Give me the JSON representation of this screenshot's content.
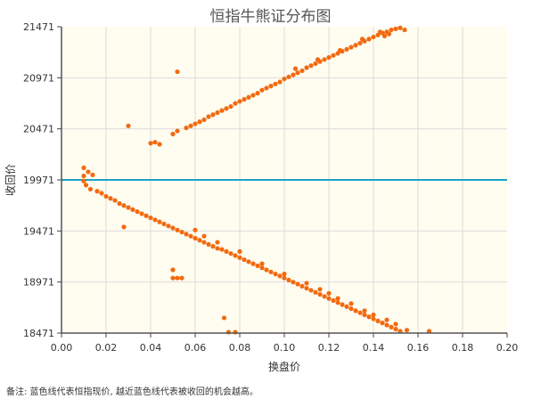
{
  "note": "备注:  蓝色线代表恒指现价, 越近蓝色线代表被收回的机会越高。",
  "chart_data": {
    "type": "scatter",
    "title": "恒指牛熊证分布图",
    "xlabel": "换盘价",
    "ylabel": "收回价",
    "xlim": [
      0,
      0.2
    ],
    "ylim": [
      18471,
      21471
    ],
    "x_ticks": [
      "0.00",
      "0.02",
      "0.04",
      "0.06",
      "0.08",
      "0.10",
      "0.12",
      "0.14",
      "0.16",
      "0.18",
      "0.20"
    ],
    "y_ticks": [
      "18471",
      "18971",
      "19471",
      "19971",
      "20471",
      "20971",
      "21471"
    ],
    "grid": true,
    "reference_line": {
      "y": 19971,
      "color": "#1aa3c8"
    },
    "colors": {
      "points": "#f26a10",
      "background": "#fffcf0",
      "grid": "#dcdcdc"
    },
    "bull_points": [
      [
        0.01,
        19960
      ],
      [
        0.011,
        19920
      ],
      [
        0.013,
        19880
      ],
      [
        0.016,
        19860
      ],
      [
        0.018,
        19840
      ],
      [
        0.02,
        19810
      ],
      [
        0.022,
        19790
      ],
      [
        0.024,
        19770
      ],
      [
        0.026,
        19740
      ],
      [
        0.028,
        19720
      ],
      [
        0.03,
        19700
      ],
      [
        0.032,
        19680
      ],
      [
        0.034,
        19660
      ],
      [
        0.036,
        19640
      ],
      [
        0.038,
        19620
      ],
      [
        0.04,
        19600
      ],
      [
        0.042,
        19580
      ],
      [
        0.044,
        19560
      ],
      [
        0.046,
        19540
      ],
      [
        0.048,
        19520
      ],
      [
        0.05,
        19500
      ],
      [
        0.052,
        19480
      ],
      [
        0.054,
        19460
      ],
      [
        0.056,
        19440
      ],
      [
        0.058,
        19420
      ],
      [
        0.06,
        19400
      ],
      [
        0.062,
        19380
      ],
      [
        0.064,
        19360
      ],
      [
        0.066,
        19340
      ],
      [
        0.068,
        19320
      ],
      [
        0.07,
        19300
      ],
      [
        0.072,
        19290
      ],
      [
        0.074,
        19270
      ],
      [
        0.076,
        19250
      ],
      [
        0.078,
        19230
      ],
      [
        0.08,
        19210
      ],
      [
        0.082,
        19190
      ],
      [
        0.084,
        19170
      ],
      [
        0.086,
        19150
      ],
      [
        0.088,
        19130
      ],
      [
        0.09,
        19110
      ],
      [
        0.092,
        19090
      ],
      [
        0.094,
        19070
      ],
      [
        0.096,
        19050
      ],
      [
        0.098,
        19030
      ],
      [
        0.1,
        19010
      ],
      [
        0.102,
        18990
      ],
      [
        0.104,
        18970
      ],
      [
        0.106,
        18950
      ],
      [
        0.108,
        18930
      ],
      [
        0.11,
        18910
      ],
      [
        0.112,
        18890
      ],
      [
        0.114,
        18870
      ],
      [
        0.116,
        18850
      ],
      [
        0.118,
        18830
      ],
      [
        0.12,
        18810
      ],
      [
        0.122,
        18790
      ],
      [
        0.124,
        18770
      ],
      [
        0.126,
        18750
      ],
      [
        0.128,
        18730
      ],
      [
        0.13,
        18710
      ],
      [
        0.132,
        18690
      ],
      [
        0.134,
        18670
      ],
      [
        0.136,
        18650
      ],
      [
        0.138,
        18630
      ],
      [
        0.14,
        18610
      ],
      [
        0.142,
        18590
      ],
      [
        0.144,
        18570
      ],
      [
        0.146,
        18550
      ],
      [
        0.148,
        18530
      ],
      [
        0.15,
        18510
      ],
      [
        0.152,
        18490
      ],
      [
        0.012,
        20050
      ],
      [
        0.01,
        20090
      ],
      [
        0.014,
        20020
      ],
      [
        0.01,
        20010
      ],
      [
        0.028,
        19510
      ],
      [
        0.05,
        19090
      ],
      [
        0.05,
        19010
      ],
      [
        0.052,
        19010
      ],
      [
        0.054,
        19010
      ],
      [
        0.073,
        18620
      ],
      [
        0.075,
        18480
      ],
      [
        0.078,
        18480
      ],
      [
        0.06,
        19480
      ],
      [
        0.064,
        19420
      ],
      [
        0.07,
        19360
      ],
      [
        0.08,
        19270
      ],
      [
        0.09,
        19150
      ],
      [
        0.1,
        19050
      ],
      [
        0.11,
        18960
      ],
      [
        0.12,
        18860
      ],
      [
        0.13,
        18760
      ],
      [
        0.14,
        18650
      ],
      [
        0.15,
        18560
      ],
      [
        0.155,
        18500
      ],
      [
        0.165,
        18490
      ],
      [
        0.116,
        18900
      ],
      [
        0.124,
        18810
      ],
      [
        0.136,
        18690
      ],
      [
        0.146,
        18600
      ]
    ],
    "bear_points": [
      [
        0.04,
        20330
      ],
      [
        0.042,
        20340
      ],
      [
        0.044,
        20320
      ],
      [
        0.03,
        20500
      ],
      [
        0.052,
        21030
      ],
      [
        0.05,
        20420
      ],
      [
        0.052,
        20450
      ],
      [
        0.056,
        20480
      ],
      [
        0.058,
        20500
      ],
      [
        0.06,
        20520
      ],
      [
        0.062,
        20540
      ],
      [
        0.064,
        20560
      ],
      [
        0.066,
        20590
      ],
      [
        0.068,
        20610
      ],
      [
        0.07,
        20630
      ],
      [
        0.072,
        20650
      ],
      [
        0.074,
        20670
      ],
      [
        0.076,
        20690
      ],
      [
        0.078,
        20720
      ],
      [
        0.08,
        20740
      ],
      [
        0.082,
        20760
      ],
      [
        0.084,
        20780
      ],
      [
        0.086,
        20800
      ],
      [
        0.088,
        20820
      ],
      [
        0.09,
        20850
      ],
      [
        0.092,
        20870
      ],
      [
        0.094,
        20890
      ],
      [
        0.096,
        20910
      ],
      [
        0.098,
        20930
      ],
      [
        0.1,
        20960
      ],
      [
        0.102,
        20980
      ],
      [
        0.104,
        21000
      ],
      [
        0.106,
        21020
      ],
      [
        0.108,
        21040
      ],
      [
        0.11,
        21070
      ],
      [
        0.112,
        21090
      ],
      [
        0.114,
        21110
      ],
      [
        0.116,
        21130
      ],
      [
        0.118,
        21150
      ],
      [
        0.12,
        21170
      ],
      [
        0.122,
        21190
      ],
      [
        0.124,
        21210
      ],
      [
        0.126,
        21230
      ],
      [
        0.128,
        21250
      ],
      [
        0.13,
        21270
      ],
      [
        0.132,
        21290
      ],
      [
        0.134,
        21310
      ],
      [
        0.136,
        21330
      ],
      [
        0.138,
        21350
      ],
      [
        0.14,
        21370
      ],
      [
        0.142,
        21390
      ],
      [
        0.144,
        21410
      ],
      [
        0.146,
        21420
      ],
      [
        0.148,
        21440
      ],
      [
        0.15,
        21450
      ],
      [
        0.152,
        21460
      ],
      [
        0.154,
        21440
      ],
      [
        0.143,
        21420
      ],
      [
        0.147,
        21400
      ],
      [
        0.105,
        21060
      ],
      [
        0.125,
        21240
      ],
      [
        0.135,
        21350
      ],
      [
        0.145,
        21380
      ],
      [
        0.115,
        21150
      ]
    ]
  }
}
